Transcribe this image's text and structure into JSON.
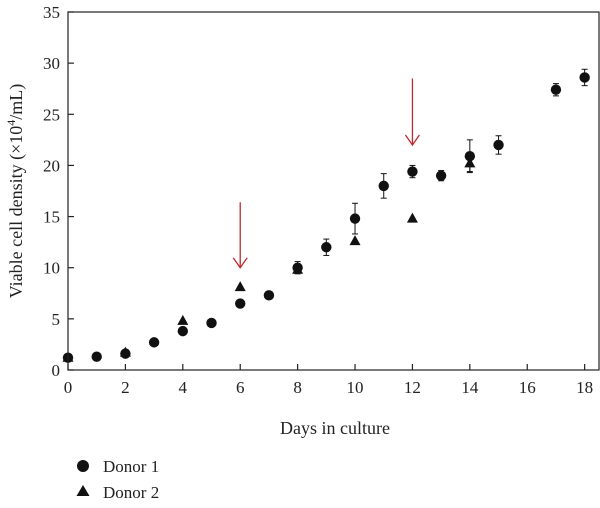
{
  "chart_data": {
    "type": "scatter",
    "title": "",
    "xlabel": "Days in culture",
    "ylabel_prefix": "Viable cell density (×10",
    "ylabel_sup": "4",
    "ylabel_suffix": "/mL)",
    "xlim": [
      0,
      18.5
    ],
    "ylim": [
      0,
      35
    ],
    "xticks": [
      0,
      2,
      4,
      6,
      8,
      10,
      12,
      14,
      16,
      18
    ],
    "yticks": [
      0,
      5,
      10,
      15,
      20,
      25,
      30,
      35
    ],
    "grid": false,
    "legend_position": "bottom-left",
    "series": [
      {
        "name": "Donor 1",
        "marker": "circle",
        "color": "#111111",
        "points": [
          {
            "x": 0,
            "y": 1.2,
            "err": 0
          },
          {
            "x": 1,
            "y": 1.3,
            "err": 0
          },
          {
            "x": 2,
            "y": 1.6,
            "err": 0
          },
          {
            "x": 3,
            "y": 2.7,
            "err": 0
          },
          {
            "x": 4,
            "y": 3.8,
            "err": 0
          },
          {
            "x": 5,
            "y": 4.6,
            "err": 0
          },
          {
            "x": 6,
            "y": 6.5,
            "err": 0
          },
          {
            "x": 7,
            "y": 7.3,
            "err": 0
          },
          {
            "x": 8,
            "y": 10.0,
            "err": 0.6
          },
          {
            "x": 9,
            "y": 12.0,
            "err": 0.8
          },
          {
            "x": 10,
            "y": 14.8,
            "err": 1.5
          },
          {
            "x": 11,
            "y": 18.0,
            "err": 1.2
          },
          {
            "x": 12,
            "y": 19.4,
            "err": 0.6
          },
          {
            "x": 13,
            "y": 19.0,
            "err": 0.5
          },
          {
            "x": 14,
            "y": 20.9,
            "err": 1.6
          },
          {
            "x": 15,
            "y": 22.0,
            "err": 0.9
          },
          {
            "x": 17,
            "y": 27.4,
            "err": 0.6
          },
          {
            "x": 18,
            "y": 28.6,
            "err": 0.8
          }
        ]
      },
      {
        "name": "Donor 2",
        "marker": "triangle",
        "color": "#111111",
        "points": [
          {
            "x": 0,
            "y": 1.2,
            "err": 0
          },
          {
            "x": 2,
            "y": 1.7,
            "err": 0
          },
          {
            "x": 4,
            "y": 4.8,
            "err": 0
          },
          {
            "x": 6,
            "y": 8.1,
            "err": 0
          },
          {
            "x": 8,
            "y": 9.8,
            "err": 0
          },
          {
            "x": 10,
            "y": 12.6,
            "err": 0
          },
          {
            "x": 12,
            "y": 14.8,
            "err": 0
          },
          {
            "x": 14,
            "y": 20.2,
            "err": 0.8
          }
        ]
      }
    ],
    "annotations": [
      {
        "type": "arrow",
        "x": 6,
        "y_from": 16.4,
        "y_to": 10.0,
        "color": "#c0282e"
      },
      {
        "type": "arrow",
        "x": 12,
        "y_from": 28.5,
        "y_to": 22.0,
        "color": "#c0282e"
      }
    ]
  }
}
